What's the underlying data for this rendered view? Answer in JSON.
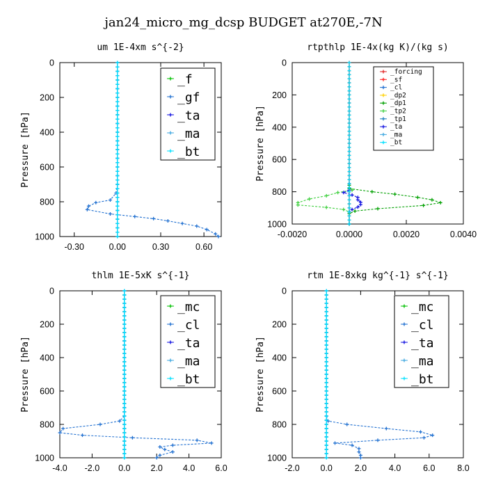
{
  "title": "jan24_micro_mg_dcsp  BUDGET at270E,-7N",
  "colors": {
    "f": "#00c000",
    "gf": "#1f6fd0",
    "ta": "#1010e0",
    "ma": "#40a8e0",
    "bt": "#00e0ff",
    "mc": "#00c000",
    "cl": "#1f6fd0",
    "forcing": "#e02020",
    "sf": "#ff2020",
    "dp2": "#ffd000",
    "dp1": "#00a000",
    "tp2": "#40d040",
    "tp1": "#2080c0"
  },
  "chart_data": [
    {
      "type": "line",
      "title": "um  1E-4xm s^{-2}",
      "ylabel": "Pressure [hPa]",
      "xlim": [
        -0.4,
        0.72
      ],
      "ylim": [
        1000,
        0
      ],
      "xticks": [
        "-0.30",
        "0.00",
        "0.30",
        "0.60"
      ],
      "xtick_values": [
        -0.3,
        0,
        0.3,
        0.6
      ],
      "yticks": [
        "0",
        "200",
        "400",
        "600",
        "800",
        "1000"
      ],
      "ytick_values": [
        0,
        200,
        400,
        600,
        800,
        1000
      ],
      "legend_fontsize": 18,
      "legend": [
        "_f",
        "_gf",
        "_ta",
        "_ma",
        "_bt"
      ],
      "series": [
        {
          "name": "_f",
          "color_key": "f",
          "constant_x": 0.0
        },
        {
          "name": "_gf",
          "color_key": "gf",
          "points": [
            [
              0,
              0
            ],
            [
              0,
              150
            ],
            [
              0,
              250
            ],
            [
              0,
              350
            ],
            [
              0,
              450
            ],
            [
              0,
              550
            ],
            [
              0,
              650
            ],
            [
              0,
              700
            ],
            [
              -0.01,
              750
            ],
            [
              -0.05,
              790
            ],
            [
              -0.15,
              805
            ],
            [
              -0.2,
              825
            ],
            [
              -0.21,
              845
            ],
            [
              -0.05,
              870
            ],
            [
              0.12,
              885
            ],
            [
              0.25,
              897
            ],
            [
              0.35,
              910
            ],
            [
              0.45,
              925
            ],
            [
              0.55,
              940
            ],
            [
              0.62,
              960
            ],
            [
              0.68,
              985
            ],
            [
              0.7,
              1000
            ]
          ]
        },
        {
          "name": "_ta",
          "color_key": "ta",
          "constant_x": 0.0
        },
        {
          "name": "_ma",
          "color_key": "ma",
          "constant_x": 0.0
        },
        {
          "name": "_bt",
          "color_key": "bt",
          "constant_x": 0.0
        }
      ]
    },
    {
      "type": "line",
      "title": "rtpthlp  1E-4x(kg K)/(kg s)",
      "ylabel": "Pressure [hPa]",
      "xlim": [
        -0.002,
        0.004
      ],
      "ylim": [
        1000,
        0
      ],
      "xticks": [
        "-0.0020",
        "0.0000",
        "0.0020",
        "0.0040"
      ],
      "xtick_values": [
        -0.002,
        0,
        0.002,
        0.004
      ],
      "yticks": [
        "0",
        "200",
        "400",
        "600",
        "800",
        "1000"
      ],
      "ytick_values": [
        0,
        200,
        400,
        600,
        800,
        1000
      ],
      "legend_fontsize": 9.5,
      "legend": [
        "_forcing",
        "_sf",
        "_cl",
        "_dp2",
        "_dp1",
        "_tp2",
        "_tp1",
        "_ta",
        "_ma",
        "_bt"
      ],
      "series": [
        {
          "name": "_forcing",
          "color_key": "forcing",
          "constant_x": 0.0
        },
        {
          "name": "_sf",
          "color_key": "sf",
          "constant_x": 0.0
        },
        {
          "name": "_tp2",
          "color_key": "tp2",
          "points": [
            [
              0,
              750
            ],
            [
              0,
              780
            ],
            [
              0.0001,
              790
            ],
            [
              -0.0004,
              805
            ],
            [
              -0.0008,
              825
            ],
            [
              -0.0014,
              845
            ],
            [
              -0.0018,
              868
            ],
            [
              -0.0018,
              882
            ],
            [
              -0.0008,
              897
            ],
            [
              -0.0002,
              910
            ],
            [
              0,
              925
            ],
            [
              0,
              1000
            ]
          ]
        },
        {
          "name": "_dp1",
          "color_key": "dp1",
          "points": [
            [
              0,
              760
            ],
            [
              0,
              780
            ],
            [
              0.0008,
              800
            ],
            [
              0.0016,
              815
            ],
            [
              0.0024,
              835
            ],
            [
              0.0029,
              850
            ],
            [
              0.0032,
              868
            ],
            [
              0.0026,
              885
            ],
            [
              0.001,
              905
            ],
            [
              0.0002,
              920
            ],
            [
              0,
              935
            ],
            [
              0,
              1000
            ]
          ]
        },
        {
          "name": "_ta",
          "color_key": "ta",
          "points": [
            [
              0,
              750
            ],
            [
              0,
              790
            ],
            [
              -0.0002,
              805
            ],
            [
              0.0001,
              820
            ],
            [
              0.0003,
              835
            ],
            [
              0.0003,
              850
            ],
            [
              0.0004,
              865
            ],
            [
              0.0004,
              880
            ],
            [
              0.0003,
              895
            ],
            [
              0.0001,
              910
            ],
            [
              0,
              925
            ],
            [
              0,
              1000
            ]
          ]
        },
        {
          "name": "_bt",
          "color_key": "bt",
          "constant_x": 0.0
        }
      ]
    },
    {
      "type": "line",
      "title": "thlm  1E-5xK s^{-1}",
      "ylabel": "Pressure [hPa]",
      "xlim": [
        -4.0,
        6.0
      ],
      "ylim": [
        1000,
        0
      ],
      "xticks": [
        "-4.0",
        "-2.0",
        "0.0",
        "2.0",
        "4.0",
        "6.0"
      ],
      "xtick_values": [
        -4,
        -2,
        0,
        2,
        4,
        6
      ],
      "yticks": [
        "0",
        "200",
        "400",
        "600",
        "800",
        "1000"
      ],
      "ytick_values": [
        0,
        200,
        400,
        600,
        800,
        1000
      ],
      "legend_fontsize": 18,
      "legend": [
        "_mc",
        "_cl",
        "_ta",
        "_ma",
        "_bt"
      ],
      "series": [
        {
          "name": "_mc",
          "color_key": "mc",
          "constant_x": 0.0
        },
        {
          "name": "_cl",
          "color_key": "cl",
          "points": [
            [
              0,
              0
            ],
            [
              0,
              300
            ],
            [
              0,
              500
            ],
            [
              0,
              700
            ],
            [
              0,
              750
            ],
            [
              -0.3,
              780
            ],
            [
              -1.5,
              800
            ],
            [
              -3.8,
              825
            ],
            [
              -4.0,
              850
            ],
            [
              -2.6,
              865
            ],
            [
              0.5,
              880
            ],
            [
              4.5,
              895
            ],
            [
              5.4,
              912
            ],
            [
              3.0,
              925
            ],
            [
              2.2,
              935
            ],
            [
              2.5,
              950
            ],
            [
              3.0,
              965
            ],
            [
              2.2,
              985
            ],
            [
              2.0,
              1000
            ]
          ]
        },
        {
          "name": "_ta",
          "color_key": "ta",
          "constant_x": 0.0
        },
        {
          "name": "_ma",
          "color_key": "ma",
          "constant_x": 0.0
        },
        {
          "name": "_bt",
          "color_key": "bt",
          "constant_x": 0.0
        }
      ]
    },
    {
      "type": "line",
      "title": "rtm  1E-8xkg kg^{-1} s^{-1}",
      "ylabel": "Pressure [hPa]",
      "xlim": [
        -2.0,
        8.0
      ],
      "ylim": [
        1000,
        0
      ],
      "xticks": [
        "-2.0",
        "0.0",
        "2.0",
        "4.0",
        "6.0",
        "8.0"
      ],
      "xtick_values": [
        -2,
        0,
        2,
        4,
        6,
        8
      ],
      "yticks": [
        "0",
        "200",
        "400",
        "600",
        "800",
        "1000"
      ],
      "ytick_values": [
        0,
        200,
        400,
        600,
        800,
        1000
      ],
      "legend_fontsize": 18,
      "legend": [
        "_mc",
        "_cl",
        "_ta",
        "_ma",
        "_bt"
      ],
      "series": [
        {
          "name": "_mc",
          "color_key": "mc",
          "constant_x": 0.0
        },
        {
          "name": "_cl",
          "color_key": "cl",
          "points": [
            [
              0,
              0
            ],
            [
              0,
              300
            ],
            [
              0,
              500
            ],
            [
              0,
              700
            ],
            [
              0,
              750
            ],
            [
              0.1,
              780
            ],
            [
              1.2,
              800
            ],
            [
              3.5,
              825
            ],
            [
              5.5,
              845
            ],
            [
              6.2,
              865
            ],
            [
              5.7,
              880
            ],
            [
              3.0,
              895
            ],
            [
              0.5,
              912
            ],
            [
              1.5,
              925
            ],
            [
              1.9,
              945
            ],
            [
              1.9,
              965
            ],
            [
              2.0,
              985
            ],
            [
              2.0,
              1000
            ]
          ]
        },
        {
          "name": "_ta",
          "color_key": "ta",
          "constant_x": 0.0
        },
        {
          "name": "_ma",
          "color_key": "ma",
          "constant_x": 0.0
        },
        {
          "name": "_bt",
          "color_key": "bt",
          "constant_x": 0.0
        }
      ]
    }
  ]
}
